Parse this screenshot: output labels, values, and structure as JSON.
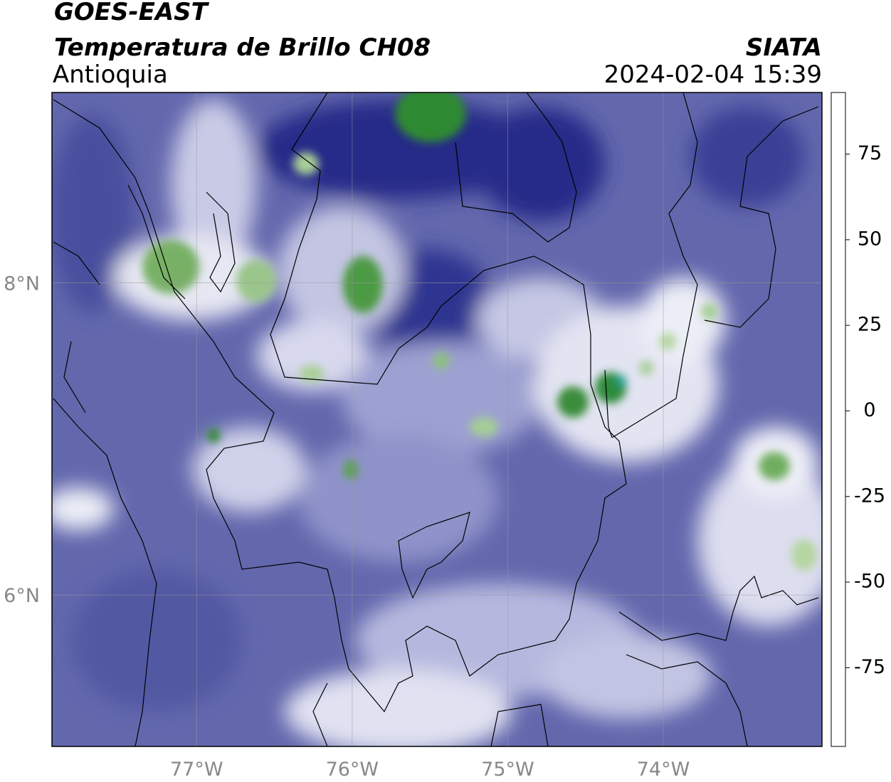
{
  "header": {
    "title": "GOES-EAST",
    "subtitle": "Temperatura de Brillo CH08",
    "source": "SIATA",
    "region": "Antioquia",
    "timestamp": "2024-02-04 15:39"
  },
  "map": {
    "xlim": [
      -77.93,
      -72.98
    ],
    "ylim": [
      5.03,
      9.22
    ],
    "xticks": [
      {
        "value": -77,
        "label": "77°W"
      },
      {
        "value": -76,
        "label": "76°W"
      },
      {
        "value": -75,
        "label": "75°W"
      },
      {
        "value": -74,
        "label": "74°W"
      }
    ],
    "yticks": [
      {
        "value": 6,
        "label": "6°N"
      },
      {
        "value": 8,
        "label": "8°N"
      }
    ],
    "grid": true
  },
  "colorbar": {
    "lim": [
      -98,
      93
    ],
    "ticks": [
      -75,
      -50,
      -25,
      0,
      25,
      50,
      75
    ],
    "colorscale": [
      {
        "value": -98,
        "color": "#ffffff"
      },
      {
        "value": -95,
        "color": "#ffffff"
      },
      {
        "value": -94,
        "color": "#00e8e0"
      },
      {
        "value": -82,
        "color": "#1aa08a"
      },
      {
        "value": -68,
        "color": "#2e8a2e"
      },
      {
        "value": -58,
        "color": "#b5d6a0"
      },
      {
        "value": -51,
        "color": "#ffffff"
      },
      {
        "value": -44,
        "color": "#b3b6dc"
      },
      {
        "value": -36,
        "color": "#5c62ac"
      },
      {
        "value": -29,
        "color": "#141a82"
      },
      {
        "value": -23,
        "color": "#2a2a2a"
      },
      {
        "value": -18,
        "color": "#8a8a8a"
      },
      {
        "value": -10,
        "color": "#ffff00"
      },
      {
        "value": 0,
        "color": "#ff9a00"
      },
      {
        "value": 8,
        "color": "#ff1a00"
      },
      {
        "value": 9,
        "color": "#000000"
      },
      {
        "value": 93,
        "color": "#000000"
      }
    ]
  }
}
